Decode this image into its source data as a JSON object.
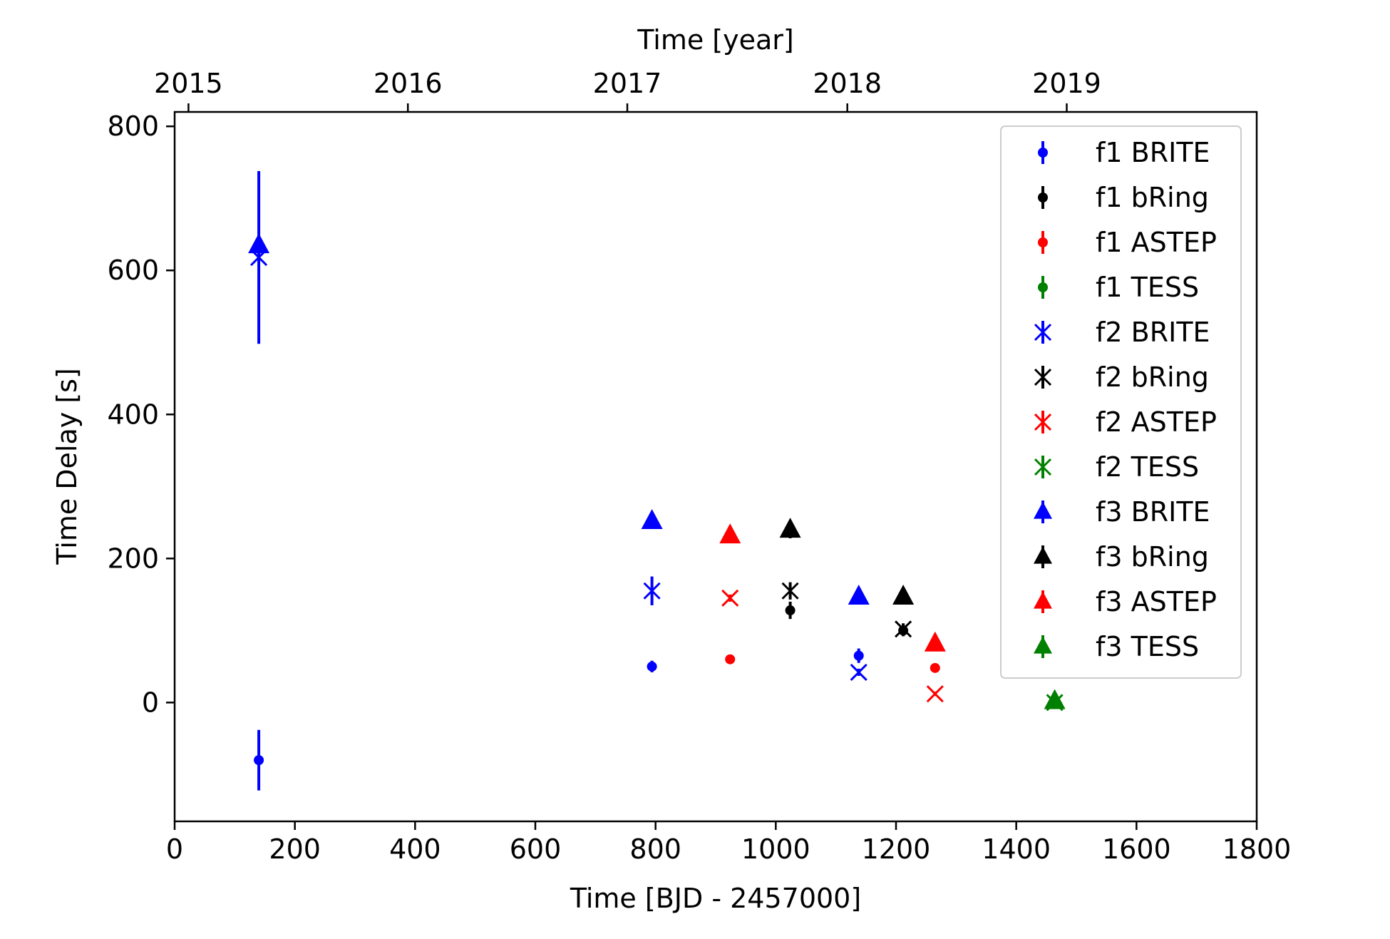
{
  "chart_data": {
    "type": "scatter",
    "xlabel": "Time [BJD - 2457000]",
    "ylabel": "Time Delay [s]",
    "top_xlabel": "Time [year]",
    "xlim": [
      0,
      1800
    ],
    "ylim": [
      -165,
      820
    ],
    "xticks": [
      0,
      200,
      400,
      600,
      800,
      1000,
      1200,
      1400,
      1600,
      1800
    ],
    "yticks": [
      0,
      200,
      400,
      600,
      800
    ],
    "top_axis": {
      "ticks": [
        {
          "label": "2015",
          "x": 23
        },
        {
          "label": "2016",
          "x": 388
        },
        {
          "label": "2017",
          "x": 753
        },
        {
          "label": "2018",
          "x": 1119
        },
        {
          "label": "2019",
          "x": 1484
        }
      ]
    },
    "legend_position": "upper-right",
    "grid": false,
    "colors": {
      "BRITE": "#0000ff",
      "bRing": "#000000",
      "ASTEP": "#ff0000",
      "TESS": "#008000"
    },
    "series": [
      {
        "name": "f1 BRITE",
        "marker": "dot",
        "color": "#0000ff",
        "points": [
          {
            "x": 140,
            "y": -80,
            "err": 42
          },
          {
            "x": 794,
            "y": 50,
            "err": 8
          },
          {
            "x": 1138,
            "y": 65,
            "err": 10
          }
        ]
      },
      {
        "name": "f1 bRing",
        "marker": "dot",
        "color": "#000000",
        "points": [
          {
            "x": 1024,
            "y": 128,
            "err": 12
          },
          {
            "x": 1212,
            "y": 100,
            "err": 8
          }
        ]
      },
      {
        "name": "f1 ASTEP",
        "marker": "dot",
        "color": "#ff0000",
        "points": [
          {
            "x": 924,
            "y": 60,
            "err": 3
          },
          {
            "x": 1265,
            "y": 48,
            "err": 3
          }
        ]
      },
      {
        "name": "f1 TESS",
        "marker": "dot",
        "color": "#008000",
        "points": [
          {
            "x": 1464,
            "y": 0,
            "err": 2
          }
        ]
      },
      {
        "name": "f2 BRITE",
        "marker": "x",
        "color": "#0000ff",
        "points": [
          {
            "x": 140,
            "y": 618,
            "err": 120
          },
          {
            "x": 794,
            "y": 155,
            "err": 20
          },
          {
            "x": 1138,
            "y": 42,
            "err": 5
          }
        ]
      },
      {
        "name": "f2 bRing",
        "marker": "x",
        "color": "#000000",
        "points": [
          {
            "x": 1024,
            "y": 155,
            "err": 12
          },
          {
            "x": 1212,
            "y": 102,
            "err": 8
          }
        ]
      },
      {
        "name": "f2 ASTEP",
        "marker": "x",
        "color": "#ff0000",
        "points": [
          {
            "x": 924,
            "y": 145,
            "err": 5
          },
          {
            "x": 1265,
            "y": 12,
            "err": 3
          }
        ]
      },
      {
        "name": "f2 TESS",
        "marker": "x",
        "color": "#008000",
        "points": [
          {
            "x": 1464,
            "y": 0,
            "err": 2
          }
        ]
      },
      {
        "name": "f3 BRITE",
        "marker": "triangle",
        "color": "#0000ff",
        "points": [
          {
            "x": 140,
            "y": 635,
            "err": 0
          },
          {
            "x": 794,
            "y": 252,
            "err": 0
          },
          {
            "x": 1138,
            "y": 147,
            "err": 0
          }
        ]
      },
      {
        "name": "f3 bRing",
        "marker": "triangle",
        "color": "#000000",
        "points": [
          {
            "x": 1024,
            "y": 240,
            "err": 12
          },
          {
            "x": 1212,
            "y": 147,
            "err": 8
          }
        ]
      },
      {
        "name": "f3 ASTEP",
        "marker": "triangle",
        "color": "#ff0000",
        "points": [
          {
            "x": 924,
            "y": 232,
            "err": 3
          },
          {
            "x": 1265,
            "y": 82,
            "err": 3
          }
        ]
      },
      {
        "name": "f3 TESS",
        "marker": "triangle",
        "color": "#008000",
        "points": [
          {
            "x": 1464,
            "y": 2,
            "err": 2
          }
        ]
      }
    ]
  }
}
